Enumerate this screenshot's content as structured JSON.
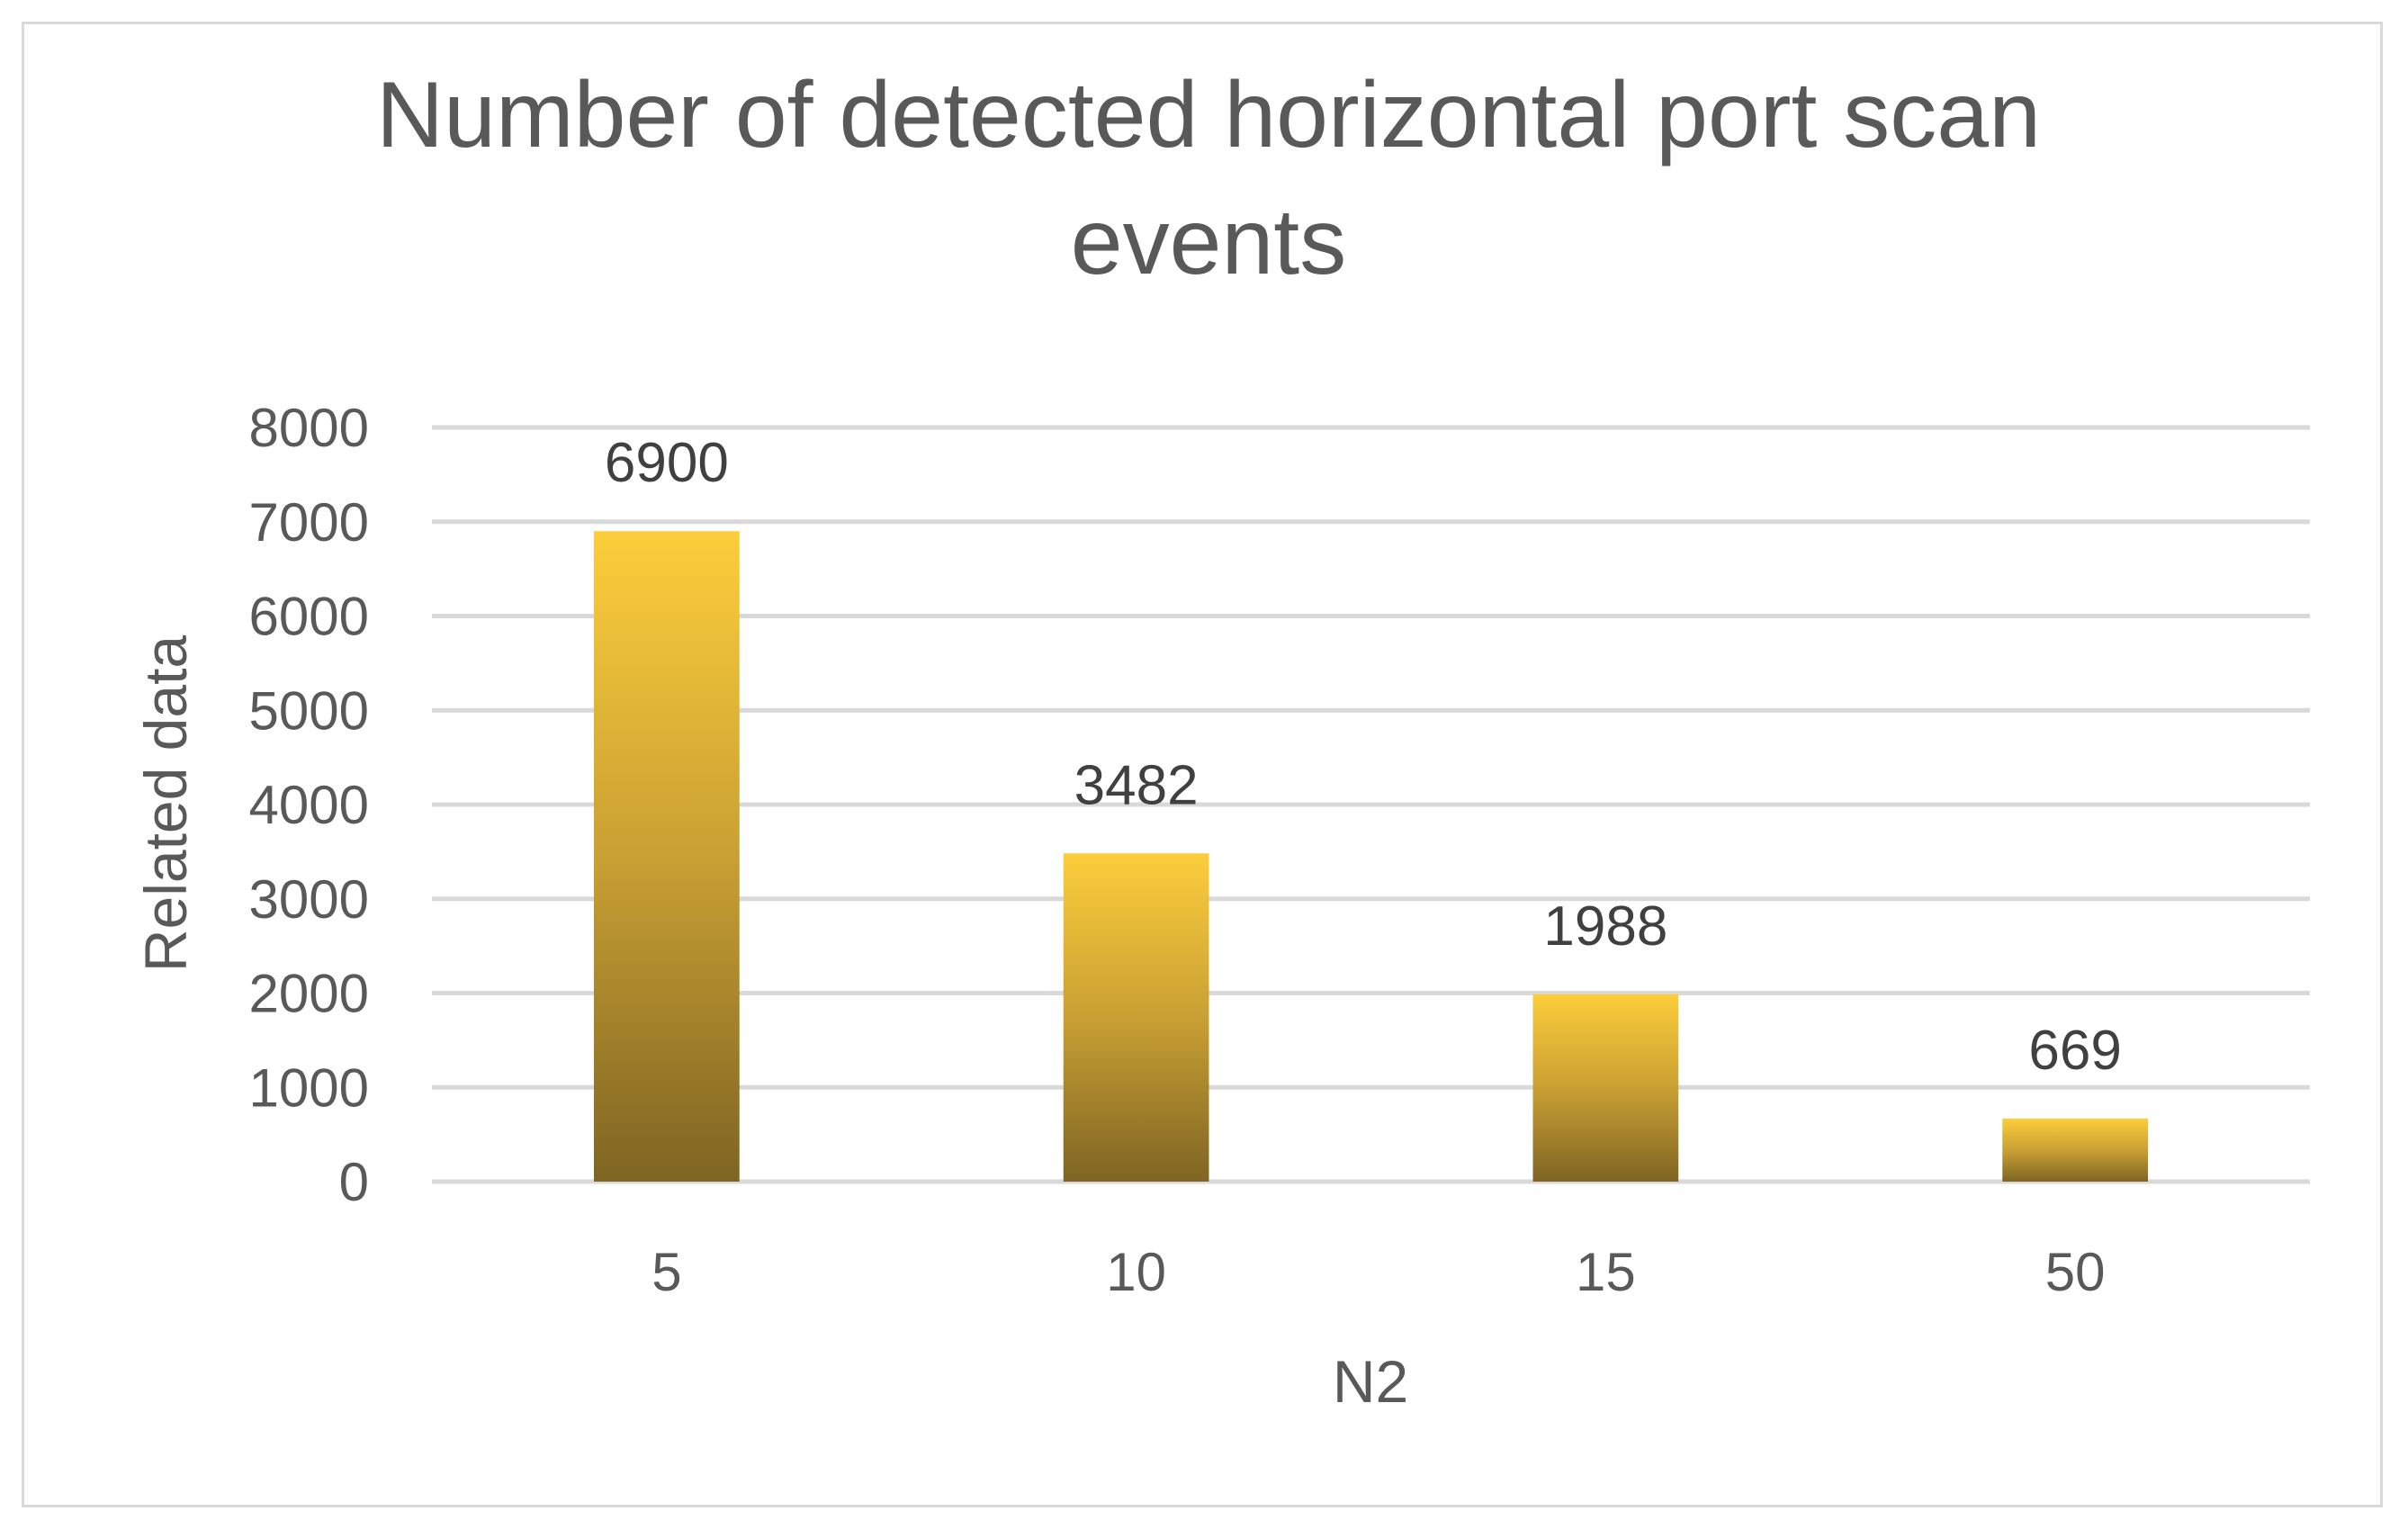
{
  "chart_data": {
    "type": "bar",
    "title_lines": [
      "Number of detected horizontal port scan",
      "events"
    ],
    "xlabel": "N2",
    "ylabel": "Related data",
    "categories": [
      "5",
      "10",
      "15",
      "50"
    ],
    "values": [
      6900,
      3482,
      1988,
      669
    ],
    "data_labels": [
      "6900",
      "3482",
      "1988",
      "669"
    ],
    "ylim": [
      0,
      8000
    ],
    "yticks": [
      0,
      1000,
      2000,
      3000,
      4000,
      5000,
      6000,
      7000,
      8000
    ],
    "ytick_labels": [
      "0",
      "1000",
      "2000",
      "3000",
      "4000",
      "5000",
      "6000",
      "7000",
      "8000"
    ],
    "grid": true,
    "legend": "none",
    "colors": {
      "bar_top": "#fccd3b",
      "bar_mid": "#c9a033",
      "bar_bottom": "#7f6523",
      "grid": "#d9d9d9",
      "text": "#595959",
      "label": "#404040"
    }
  }
}
